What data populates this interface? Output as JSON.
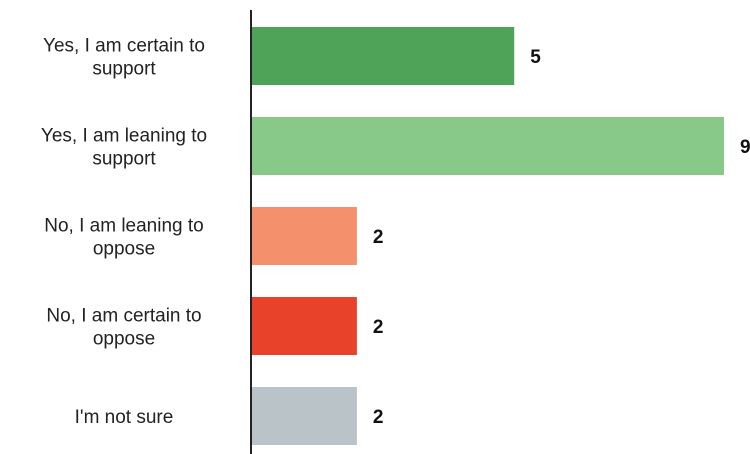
{
  "chart_data": {
    "type": "bar",
    "orientation": "horizontal",
    "categories": [
      [
        "Yes, I am certain to",
        "support"
      ],
      [
        "Yes, I am leaning to",
        "support"
      ],
      [
        "No, I am leaning to",
        "oppose"
      ],
      [
        "No, I am certain to",
        "oppose"
      ],
      [
        "I'm not sure"
      ]
    ],
    "values": [
      5,
      9,
      2,
      2,
      2
    ],
    "colors": [
      "#4ea359",
      "#88c888",
      "#f5906c",
      "#e8422a",
      "#b9c3c8"
    ],
    "data_labels": [
      "5",
      "9",
      "2",
      "2",
      "2"
    ],
    "xlim": [
      0,
      9
    ],
    "grid": false,
    "legend": "none"
  }
}
